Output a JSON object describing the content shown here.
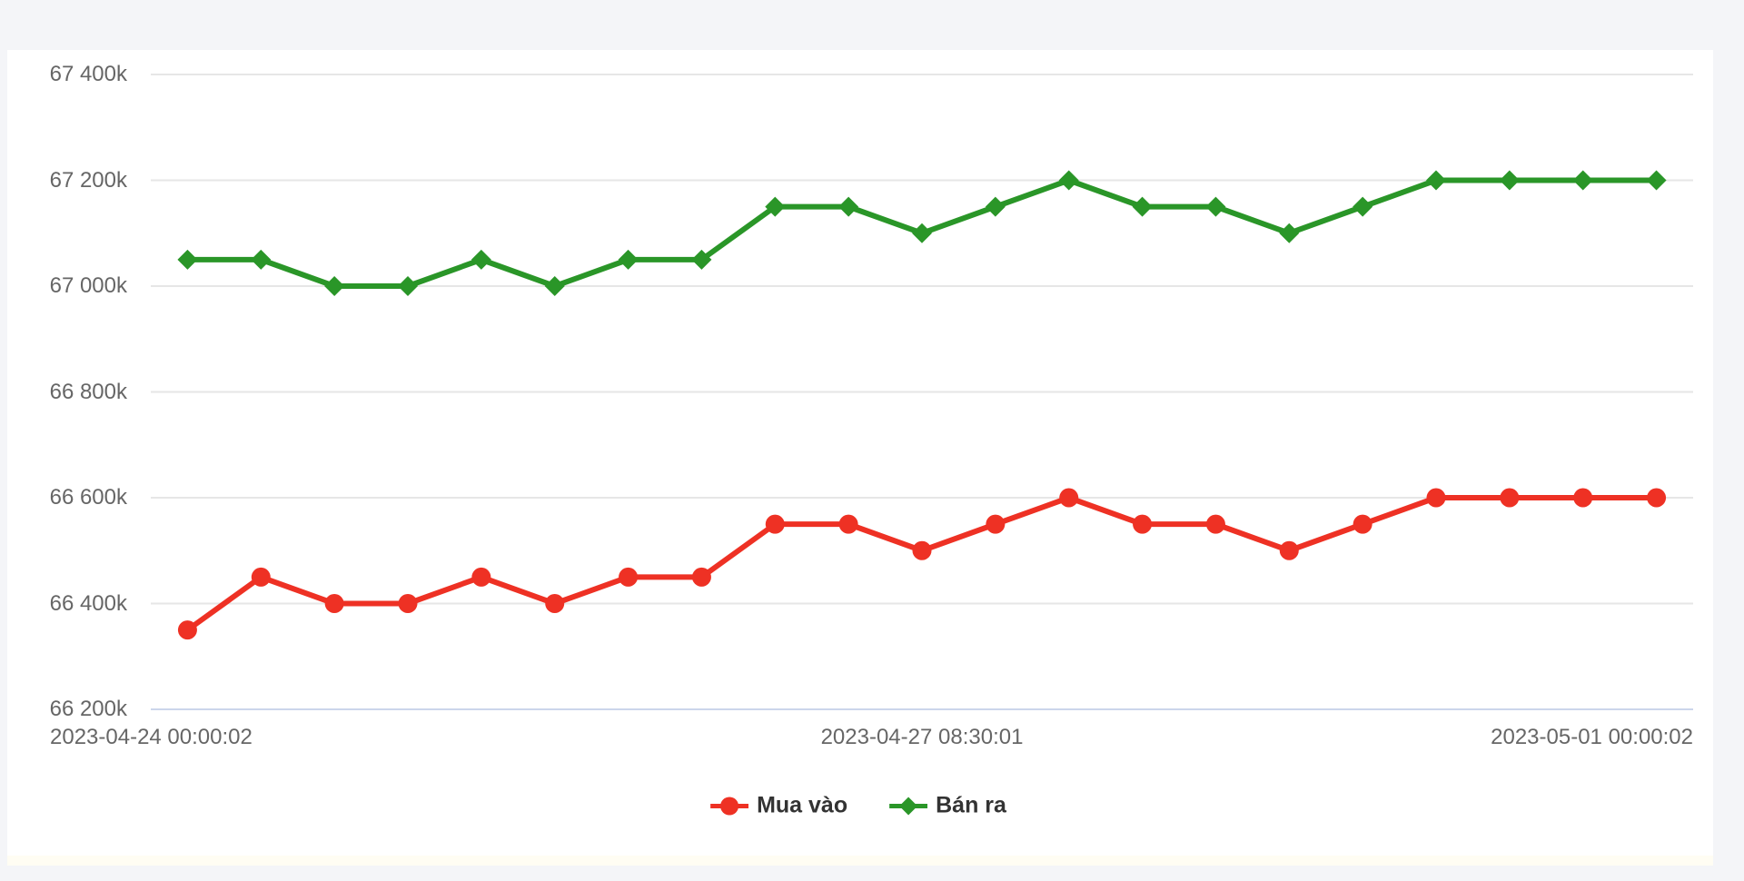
{
  "page": {
    "background_color": "#f4f5f8",
    "card_background_color": "#ffffff"
  },
  "chart_data": {
    "type": "line",
    "title": "",
    "point_count": 21,
    "x_ticks": [
      {
        "index": 0,
        "label": "2023-04-24 00:00:02"
      },
      {
        "index": 10,
        "label": "2023-04-27 08:30:01"
      },
      {
        "index": 20,
        "label": "2023-05-01 00:00:02"
      }
    ],
    "y_ticks": [
      {
        "value": 67400,
        "label": "67 400k"
      },
      {
        "value": 67200,
        "label": "67 200k"
      },
      {
        "value": 67000,
        "label": "67 000k"
      },
      {
        "value": 66800,
        "label": "66 800k"
      },
      {
        "value": 66600,
        "label": "66 600k"
      },
      {
        "value": 66400,
        "label": "66 400k"
      },
      {
        "value": 66200,
        "label": "66 200k"
      }
    ],
    "ylim": [
      66200,
      67400
    ],
    "grid": true,
    "grid_color": "#e6e6e6",
    "axis_line_color": "#ccd6eb",
    "label_color": "#666666",
    "legend_text_color": "#333333",
    "legend_position": "bottom-center",
    "series": [
      {
        "name": "Mua vào",
        "color": "#ee3124",
        "marker": "circle",
        "values": [
          66350,
          66450,
          66400,
          66400,
          66450,
          66400,
          66450,
          66450,
          66550,
          66550,
          66500,
          66550,
          66600,
          66550,
          66550,
          66500,
          66550,
          66600,
          66600,
          66600,
          66600
        ]
      },
      {
        "name": "Bán ra",
        "color": "#2a9628",
        "marker": "diamond",
        "values": [
          67050,
          67050,
          67000,
          67000,
          67050,
          67000,
          67050,
          67050,
          67150,
          67150,
          67100,
          67150,
          67200,
          67150,
          67150,
          67100,
          67150,
          67200,
          67200,
          67200,
          67200
        ]
      }
    ]
  }
}
